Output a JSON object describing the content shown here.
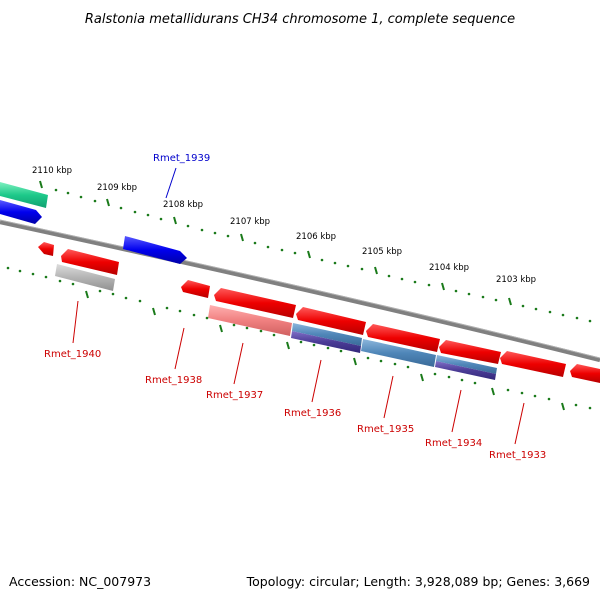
{
  "title": "Ralstonia metallidurans CH34 chromosome 1, complete sequence",
  "footer": {
    "accession": "Accession: NC_007973",
    "topology": "Topology: circular; Length: 3,928,089 bp; Genes: 3,669"
  },
  "ruler_labels": [
    "2110 kbp",
    "2109 kbp",
    "2108 kbp",
    "2107 kbp",
    "2106 kbp",
    "2105 kbp",
    "2104 kbp",
    "2103 kbp"
  ],
  "gene_labels": [
    {
      "text": "Rmet_1939",
      "color": "#0000cc"
    },
    {
      "text": "Rmet_1940",
      "color": "#cc0000"
    },
    {
      "text": "Rmet_1938",
      "color": "#cc0000"
    },
    {
      "text": "Rmet_1937",
      "color": "#cc0000"
    },
    {
      "text": "Rmet_1936",
      "color": "#cc0000"
    },
    {
      "text": "Rmet_1935",
      "color": "#cc0000"
    },
    {
      "text": "Rmet_1934",
      "color": "#cc0000"
    },
    {
      "text": "Rmet_1933",
      "color": "#cc0000"
    }
  ],
  "colors": {
    "forward_gene": "#0000ee",
    "reverse_gene": "#ee0000",
    "backbone": "#808080",
    "ticks": "#1a7a1a",
    "feature_teal": "#1ec98a",
    "feature_pink": "#f08080",
    "feature_steel": "#4f86b8",
    "feature_purple": "#4b3c96",
    "feature_gray": "#b4b4b4"
  }
}
